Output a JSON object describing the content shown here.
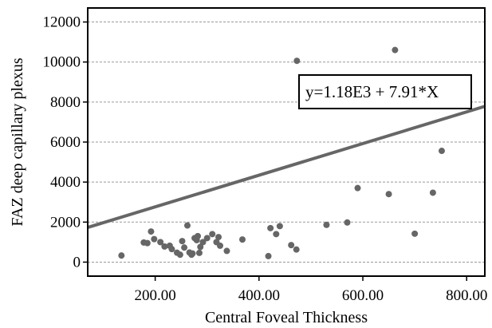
{
  "chart_data": {
    "type": "scatter",
    "xlabel": "Central Foveal Thickness",
    "ylabel": "FAZ deep capillary plexus",
    "xlim": [
      70,
      835
    ],
    "ylim": [
      -700,
      12700
    ],
    "x_ticks": [
      200,
      400,
      600,
      800
    ],
    "x_tick_labels": [
      "200.00",
      "400.00",
      "600.00",
      "800.00"
    ],
    "y_ticks": [
      0,
      2000,
      4000,
      6000,
      8000,
      10000,
      12000
    ],
    "y_tick_labels": [
      "0",
      "2000",
      "4000",
      "6000",
      "8000",
      "10000",
      "12000"
    ],
    "grid": "horizontal dashed",
    "annotation": "y=1.18E3 + 7.91*X",
    "fit_line": {
      "intercept": 1180,
      "slope": 7.91
    },
    "point_color": "#666666",
    "line_color": "#666666",
    "points": [
      [
        135,
        330
      ],
      [
        178,
        980
      ],
      [
        185,
        950
      ],
      [
        192,
        1530
      ],
      [
        198,
        1150
      ],
      [
        210,
        1000
      ],
      [
        218,
        780
      ],
      [
        228,
        820
      ],
      [
        232,
        650
      ],
      [
        242,
        470
      ],
      [
        248,
        370
      ],
      [
        252,
        1050
      ],
      [
        256,
        730
      ],
      [
        262,
        1830
      ],
      [
        266,
        480
      ],
      [
        270,
        370
      ],
      [
        272,
        430
      ],
      [
        276,
        1200
      ],
      [
        280,
        1100
      ],
      [
        282,
        1300
      ],
      [
        285,
        460
      ],
      [
        287,
        760
      ],
      [
        292,
        1000
      ],
      [
        300,
        1200
      ],
      [
        310,
        1400
      ],
      [
        318,
        1000
      ],
      [
        322,
        1250
      ],
      [
        325,
        820
      ],
      [
        338,
        560
      ],
      [
        368,
        1130
      ],
      [
        418,
        300
      ],
      [
        422,
        1700
      ],
      [
        433,
        1400
      ],
      [
        440,
        1800
      ],
      [
        462,
        850
      ],
      [
        472,
        630
      ],
      [
        473,
        10060
      ],
      [
        530,
        1860
      ],
      [
        570,
        1980
      ],
      [
        590,
        3700
      ],
      [
        650,
        3400
      ],
      [
        662,
        10600
      ],
      [
        700,
        1420
      ],
      [
        735,
        3470
      ],
      [
        752,
        5560
      ]
    ]
  }
}
